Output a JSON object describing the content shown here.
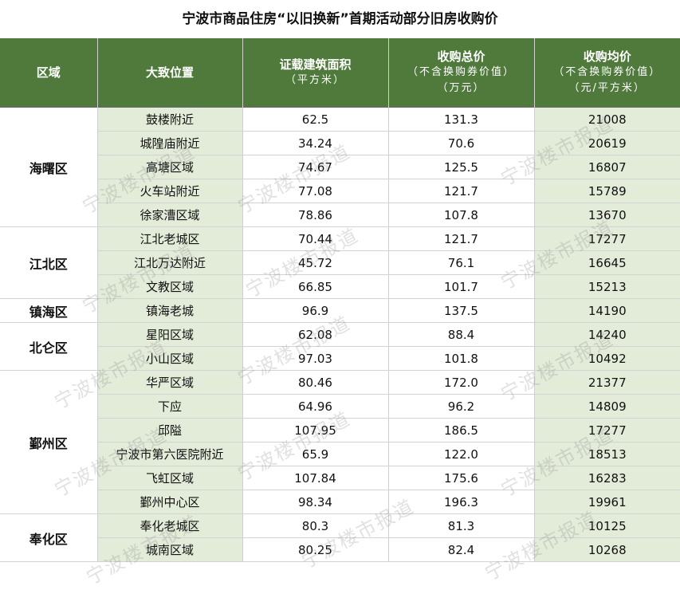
{
  "title": "宁波市商品住房“以旧换新”首期活动部分旧房收购价",
  "headers": {
    "region": "区域",
    "location": "大致位置",
    "area": "证载建筑面积",
    "area_unit": "（平方米）",
    "total": "收购总价",
    "total_note": "（不含换购券价值）",
    "total_unit": "（万元）",
    "avg": "收购均价",
    "avg_note": "（不含换购券价值）",
    "avg_unit": "（元/平方米）"
  },
  "groups": [
    {
      "region": "海曙区",
      "rows": [
        {
          "location": "鼓楼附近",
          "area": "62.5",
          "total": "131.3",
          "avg": "21008"
        },
        {
          "location": "城隍庙附近",
          "area": "34.24",
          "total": "70.6",
          "avg": "20619"
        },
        {
          "location": "高塘区域",
          "area": "74.67",
          "total": "125.5",
          "avg": "16807"
        },
        {
          "location": "火车站附近",
          "area": "77.08",
          "total": "121.7",
          "avg": "15789"
        },
        {
          "location": "徐家漕区域",
          "area": "78.86",
          "total": "107.8",
          "avg": "13670"
        }
      ]
    },
    {
      "region": "江北区",
      "rows": [
        {
          "location": "江北老城区",
          "area": "70.44",
          "total": "121.7",
          "avg": "17277"
        },
        {
          "location": "江北万达附近",
          "area": "45.72",
          "total": "76.1",
          "avg": "16645"
        },
        {
          "location": "文教区域",
          "area": "66.85",
          "total": "101.7",
          "avg": "15213"
        }
      ]
    },
    {
      "region": "镇海区",
      "rows": [
        {
          "location": "镇海老城",
          "area": "96.9",
          "total": "137.5",
          "avg": "14190"
        }
      ]
    },
    {
      "region": "北仑区",
      "rows": [
        {
          "location": "星阳区域",
          "area": "62.08",
          "total": "88.4",
          "avg": "14240"
        },
        {
          "location": "小山区域",
          "area": "97.03",
          "total": "101.8",
          "avg": "10492"
        }
      ]
    },
    {
      "region": "鄞州区",
      "rows": [
        {
          "location": "华严区域",
          "area": "80.46",
          "total": "172.0",
          "avg": "21377"
        },
        {
          "location": "下应",
          "area": "64.96",
          "total": "96.2",
          "avg": "14809"
        },
        {
          "location": "邱隘",
          "area": "107.95",
          "total": "186.5",
          "avg": "17277"
        },
        {
          "location": "宁波市第六医院附近",
          "area": "65.9",
          "total": "122.0",
          "avg": "18513"
        },
        {
          "location": "飞虹区域",
          "area": "107.84",
          "total": "175.6",
          "avg": "16283"
        },
        {
          "location": "鄞州中心区",
          "area": "98.34",
          "total": "196.3",
          "avg": "19961"
        }
      ]
    },
    {
      "region": "奉化区",
      "rows": [
        {
          "location": "奉化老城区",
          "area": "80.3",
          "total": "81.3",
          "avg": "10125"
        },
        {
          "location": "城南区域",
          "area": "80.25",
          "total": "82.4",
          "avg": "10268"
        }
      ]
    }
  ],
  "watermark": "宁波楼市报道",
  "colors": {
    "header_bg": "#4f7a3c",
    "band": "#e3ecd9"
  }
}
